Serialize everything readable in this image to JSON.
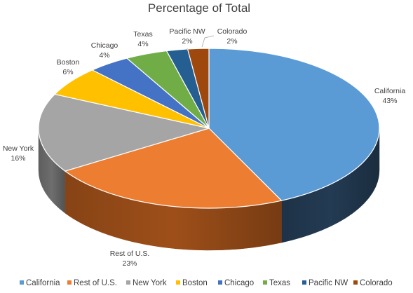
{
  "chart_data": {
    "type": "pie",
    "style": "3d",
    "title": "Percentage of Total",
    "legend_position": "bottom",
    "slices": [
      {
        "name": "California",
        "value": 43,
        "label": "43%",
        "color": "#5b9bd5",
        "side_color": "#233b53"
      },
      {
        "name": "Rest of U.S.",
        "value": 23,
        "label": "23%",
        "color": "#ed7d31",
        "side_color": "#9e4f19"
      },
      {
        "name": "New York",
        "value": 16,
        "label": "16%",
        "color": "#a5a5a5",
        "side_color": "#6e6e6e"
      },
      {
        "name": "Boston",
        "value": 6,
        "label": "6%",
        "color": "#ffc000",
        "side_color": "#a37b00"
      },
      {
        "name": "Chicago",
        "value": 4,
        "label": "4%",
        "color": "#4472c4",
        "side_color": "#2b4a80"
      },
      {
        "name": "Texas",
        "value": 4,
        "label": "4%",
        "color": "#70ad47",
        "side_color": "#4a742f"
      },
      {
        "name": "Pacific NW",
        "value": 2,
        "label": "2%",
        "color": "#255e91",
        "side_color": "#163a5a"
      },
      {
        "name": "Colorado",
        "value": 2,
        "label": "2%",
        "color": "#9e480e",
        "side_color": "#5e2a08"
      }
    ]
  }
}
